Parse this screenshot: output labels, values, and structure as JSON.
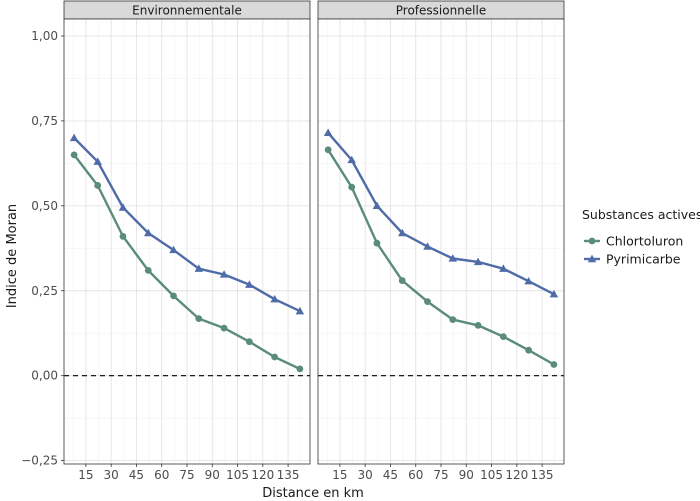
{
  "chart_data": {
    "type": "line",
    "xlabel": "Distance en km",
    "ylabel": "Indice de Moran",
    "x_ticks": [
      15,
      30,
      45,
      60,
      75,
      90,
      105,
      120,
      135
    ],
    "x_tick_labels": [
      "15",
      "30",
      "45",
      "60",
      "75",
      "90",
      "105",
      "120",
      "135"
    ],
    "xlim": [
      2,
      148
    ],
    "y_ticks": [
      -0.25,
      0,
      0.25,
      0.5,
      0.75,
      1.0
    ],
    "y_tick_labels": [
      "−0,25",
      "0,00",
      "0,25",
      "0,50",
      "0,75",
      "1,00"
    ],
    "ylim": [
      -0.26,
      1.05
    ],
    "reference_line": {
      "y": 0,
      "style": "dashed"
    },
    "grid": true,
    "legend": {
      "title": "Substances actives",
      "position": "right",
      "entries": [
        {
          "name": "Chlortoluron",
          "color": "#5b8c7b",
          "marker": "circle"
        },
        {
          "name": "Pyrimicarbe",
          "color": "#4f6ca8",
          "marker": "triangle"
        }
      ]
    },
    "x": [
      8,
      22,
      37,
      52,
      67,
      82,
      97,
      112,
      127,
      142
    ],
    "panels": [
      {
        "title": "Environnementale",
        "series": [
          {
            "name": "Chlortoluron",
            "values": [
              0.65,
              0.56,
              0.41,
              0.31,
              0.235,
              0.168,
              0.14,
              0.1,
              0.055,
              0.02
            ]
          },
          {
            "name": "Pyrimicarbe",
            "values": [
              0.7,
              0.63,
              0.495,
              0.42,
              0.37,
              0.315,
              0.298,
              0.268,
              0.225,
              0.19
            ]
          }
        ]
      },
      {
        "title": "Professionnelle",
        "series": [
          {
            "name": "Chlortoluron",
            "values": [
              0.665,
              0.555,
              0.39,
              0.28,
              0.218,
              0.165,
              0.148,
              0.115,
              0.075,
              0.033
            ]
          },
          {
            "name": "Pyrimicarbe",
            "values": [
              0.715,
              0.635,
              0.5,
              0.42,
              0.38,
              0.345,
              0.335,
              0.315,
              0.278,
              0.24
            ]
          }
        ]
      }
    ]
  }
}
